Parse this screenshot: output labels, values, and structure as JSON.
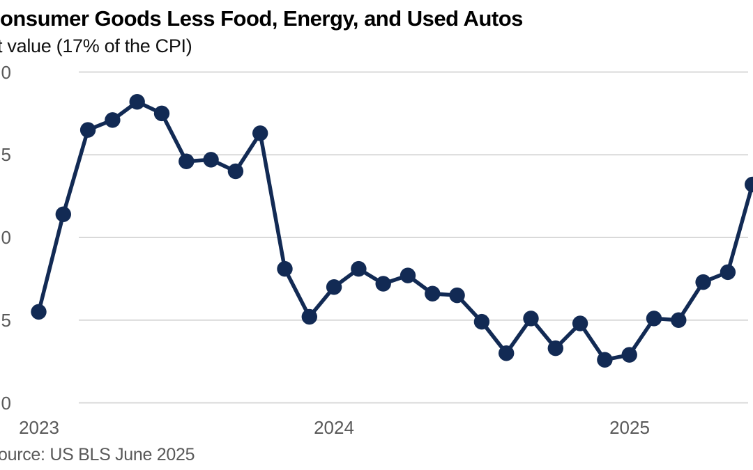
{
  "header": {
    "title_visible": "onsumer Goods Less Food, Energy, and Used Autos",
    "subtitle_visible": "t value (17% of the CPI)"
  },
  "footer": {
    "source_visible": "ource: US BLS June 2025"
  },
  "chart_data": {
    "type": "line",
    "title": "onsumer Goods Less Food, Energy, and Used Autos",
    "subtitle": "t value (17% of the CPI)",
    "source": "ource: US BLS June 2025",
    "x": [
      "Jan 2023",
      "Feb 2023",
      "Mar 2023",
      "Apr 2023",
      "May 2023",
      "Jun 2023",
      "Jul 2023",
      "Aug 2023",
      "Sep 2023",
      "Oct 2023",
      "Nov 2023",
      "Dec 2023",
      "Jan 2024",
      "Feb 2024",
      "Mar 2024",
      "Apr 2024",
      "May 2024",
      "Jun 2024",
      "Jul 2024",
      "Aug 2024",
      "Sep 2024",
      "Oct 2024",
      "Nov 2024",
      "Dec 2024",
      "Jan 2025",
      "Feb 2025",
      "Mar 2025",
      "Apr 2025",
      "May 2025",
      "Jun 2025"
    ],
    "series": [
      {
        "name": "Consumer goods less food, energy, and used autos",
        "values": [
          0.55,
          1.14,
          1.65,
          1.71,
          1.82,
          1.75,
          1.46,
          1.47,
          1.4,
          1.63,
          0.81,
          0.52,
          0.7,
          0.81,
          0.72,
          0.77,
          0.66,
          0.65,
          0.49,
          0.3,
          0.51,
          0.33,
          0.48,
          0.26,
          0.29,
          0.51,
          0.5,
          0.73,
          0.79,
          1.32
        ]
      }
    ],
    "x_tick_labels": [
      "2023",
      "2024",
      "2025"
    ],
    "y_tick_labels_visible": [
      "0",
      "5",
      "0",
      "5",
      "0"
    ],
    "y_gridline_values": [
      2.0,
      1.5,
      1.0,
      0.5,
      0.0
    ],
    "ylim": [
      0,
      2
    ],
    "grid": true,
    "legend": false,
    "colors": {
      "line": "#122a54",
      "marker": "#122a54",
      "gridline": "#d9d9d9",
      "axis_text": "#595959",
      "title_text": "#000000",
      "background": "#ffffff"
    }
  }
}
